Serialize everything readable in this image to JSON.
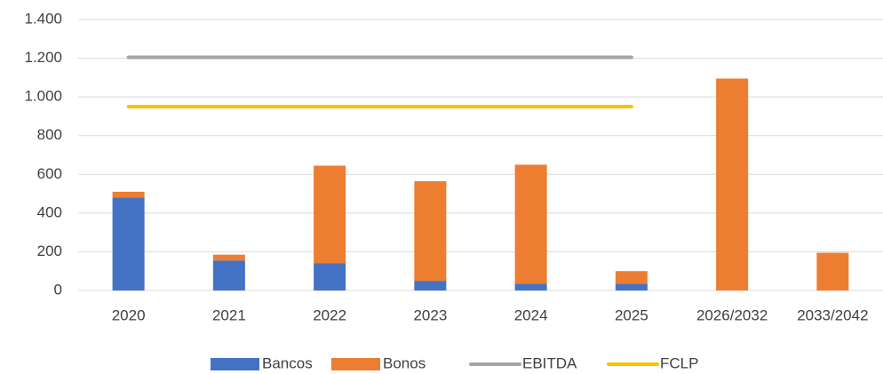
{
  "chart_data": {
    "type": "bar",
    "stacked": true,
    "categories": [
      "2020",
      "2021",
      "2022",
      "2023",
      "2024",
      "2025",
      "2026/2032",
      "2033/2042"
    ],
    "series": [
      {
        "name": "Bancos",
        "color": "#4472c4",
        "values": [
          480,
          155,
          140,
          50,
          35,
          35,
          0,
          0
        ]
      },
      {
        "name": "Bonos",
        "color": "#ed7d31",
        "values": [
          30,
          30,
          505,
          515,
          615,
          65,
          1095,
          195
        ]
      },
      {
        "name": "EBITDA",
        "type": "line",
        "color": "#a5a5a5",
        "values": [
          1205,
          1205,
          1205,
          1205,
          1205,
          1205,
          null,
          null
        ]
      },
      {
        "name": "FCLP",
        "type": "line",
        "color": "#ffc000",
        "values": [
          950,
          950,
          950,
          950,
          950,
          950,
          null,
          null
        ]
      }
    ],
    "ylim": [
      0,
      1400
    ],
    "yticks": [
      0,
      200,
      400,
      600,
      800,
      {
        "value": 1000,
        "label": "1.000"
      },
      {
        "value": 1200,
        "label": "1.200"
      },
      {
        "value": 1400,
        "label": "1.400"
      }
    ],
    "grid": true,
    "legend": "bottom"
  }
}
